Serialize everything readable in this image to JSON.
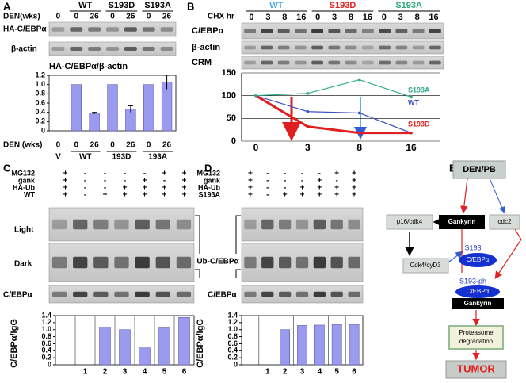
{
  "panel_labels": [
    "A",
    "B",
    "C",
    "D",
    "E"
  ],
  "panel_a": {
    "den_label": "DEN(wks)",
    "groups": [
      "WT",
      "S193D",
      "S193A"
    ],
    "lanes": [
      "0",
      "0",
      "26",
      "0",
      "26",
      "0",
      "26"
    ],
    "blots": [
      "HA-C/EBPα",
      "β-actin"
    ]
  },
  "panel_b": {
    "chx_label": "CHX hr",
    "groups": [
      {
        "name": "WT",
        "color": "#4aa8e8"
      },
      {
        "name": "S193D",
        "color": "#e02020"
      },
      {
        "name": "S193A",
        "color": "#2eaa7a"
      }
    ],
    "lanes": [
      "0",
      "3",
      "8",
      "16",
      "0",
      "3",
      "8",
      "16",
      "0",
      "3",
      "8",
      "16"
    ],
    "blots": [
      "C/EBPα",
      "β-actin",
      "CRM"
    ]
  },
  "panel_c": {
    "rows": [
      {
        "label": "MG132",
        "signs": [
          "+",
          "-",
          "-",
          "-",
          "-",
          "+",
          "+"
        ]
      },
      {
        "label": "gank",
        "signs": [
          "+",
          "-",
          "-",
          "-",
          "+",
          "-",
          "+"
        ]
      },
      {
        "label": "HA-Ub",
        "signs": [
          "+",
          "-",
          "-",
          "+",
          "+",
          "+",
          "+"
        ]
      },
      {
        "label": "WT",
        "signs": [
          "+",
          "-",
          "+",
          "+",
          "+",
          "+",
          "+"
        ]
      }
    ],
    "blots": [
      "Light",
      "Dark",
      "C/EBPα"
    ],
    "ub_label": "Ub-C/EBPα"
  },
  "panel_d": {
    "rows": [
      {
        "label": "MG132",
        "signs": [
          "+",
          "-",
          "-",
          "-",
          "-",
          "+",
          "+"
        ]
      },
      {
        "label": "gank",
        "signs": [
          "+",
          "-",
          "-",
          "-",
          "+",
          "-",
          "+"
        ]
      },
      {
        "label": "HA-Ub",
        "signs": [
          "+",
          "-",
          "-",
          "+",
          "+",
          "+",
          "+"
        ]
      },
      {
        "label": "S193A",
        "signs": [
          "+",
          "-",
          "+",
          "+",
          "+",
          "+",
          "+"
        ]
      }
    ],
    "blots": [
      "C/EBPα"
    ]
  },
  "panel_e": {
    "nodes": [
      {
        "label": "DEN/PB"
      },
      {
        "label": "p16/cdk4"
      },
      {
        "label": "Gankyrin"
      },
      {
        "label": "cdc2"
      },
      {
        "label": "Cdk4/cyD3"
      },
      {
        "label": "S193"
      },
      {
        "label": "C/EBPα"
      },
      {
        "label": "S193-ph"
      },
      {
        "label": "C/EBPα"
      },
      {
        "label": "Gankyrin"
      },
      {
        "label_lines": [
          "Proteasome",
          "degradation"
        ]
      },
      {
        "label": "TUMOR"
      }
    ]
  },
  "chart_data": [
    {
      "type": "bar",
      "title": "HA-C/EBPα/β-actin",
      "x_label": "DEN (wks)",
      "categories": [
        "0",
        "0",
        "26",
        "0",
        "26",
        "0",
        "26"
      ],
      "groups": [
        "V",
        "WT",
        "193D",
        "193A"
      ],
      "values": [
        0,
        1.0,
        0.38,
        1.0,
        0.47,
        1.0,
        1.05
      ],
      "errors": [
        null,
        null,
        0.02,
        null,
        0.07,
        null,
        0.15
      ],
      "color": "#9a9aee",
      "ylim": [
        0,
        1.2
      ],
      "yticks": [
        0,
        0.2,
        0.4,
        0.6,
        0.8,
        {
          "value": 1,
          "label": "1.0"
        },
        1.2
      ]
    },
    {
      "type": "line",
      "categories": [
        "0",
        "3",
        "8",
        "16"
      ],
      "series": [
        {
          "name": "WT",
          "color": "#3b50c8",
          "values": [
            100,
            65,
            62,
            18
          ]
        },
        {
          "name": "S193D",
          "color": "#e02020",
          "values": [
            100,
            32,
            18,
            18
          ]
        },
        {
          "name": "S193A",
          "color": "#2eaa8a",
          "values": [
            100,
            105,
            135,
            97
          ]
        }
      ],
      "ylim": [
        0,
        150
      ],
      "yticks": [
        0,
        50,
        100,
        150
      ],
      "grid": true
    },
    {
      "type": "bar",
      "y_label": "C/EBPα/IgG",
      "categories": [
        null,
        "1",
        "2",
        "3",
        "4",
        "5",
        "6"
      ],
      "values": [
        null,
        0,
        1.07,
        1.0,
        0.48,
        1.05,
        1.35
      ],
      "color": "#9a9aee",
      "ylim": [
        0,
        1.4
      ],
      "yticks": [
        0,
        0.2,
        0.4,
        0.6,
        0.8,
        {
          "value": 1,
          "label": "1.0"
        },
        1.2,
        1.4
      ]
    },
    {
      "type": "bar",
      "y_label": "C/EBPα/IgG",
      "categories": [
        null,
        "1",
        "2",
        "3",
        "4",
        "5",
        "6"
      ],
      "values": [
        null,
        0,
        1.0,
        1.12,
        1.13,
        1.15,
        1.15
      ],
      "color": "#9a9aee",
      "ylim": [
        0,
        1.4
      ],
      "yticks": [
        0,
        0.2,
        0.4,
        0.6,
        0.8,
        {
          "value": 1,
          "label": "1.0"
        },
        1.2,
        1.4
      ]
    }
  ]
}
